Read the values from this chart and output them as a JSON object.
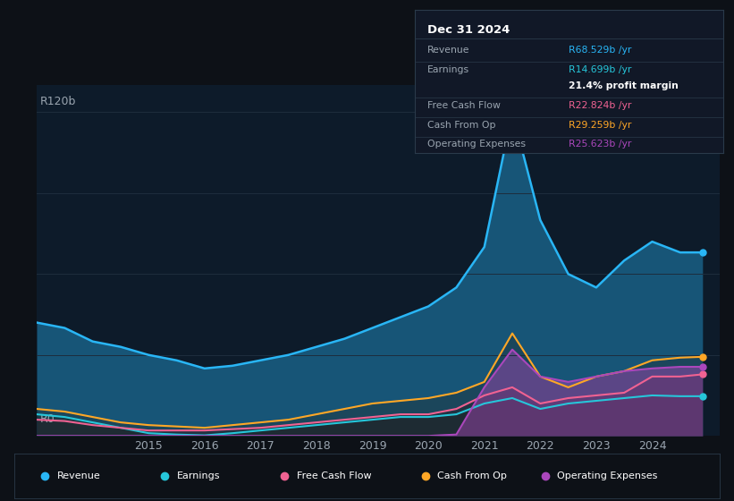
{
  "background_color": "#0d1117",
  "plot_bg_color": "#0d1b2a",
  "title_box_bg": "#111827",
  "title_box_border": "#2a3a4a",
  "years": [
    2013.0,
    2013.5,
    2014.0,
    2014.5,
    2015.0,
    2015.5,
    2016.0,
    2016.5,
    2017.0,
    2017.5,
    2018.0,
    2018.5,
    2019.0,
    2019.5,
    2020.0,
    2020.5,
    2021.0,
    2021.5,
    2022.0,
    2022.5,
    2023.0,
    2023.5,
    2024.0,
    2024.5,
    2024.9
  ],
  "revenue": [
    42,
    40,
    35,
    33,
    30,
    28,
    25,
    26,
    28,
    30,
    33,
    36,
    40,
    44,
    48,
    55,
    70,
    120,
    80,
    60,
    55,
    65,
    72,
    68,
    68
  ],
  "earnings": [
    8,
    7,
    5,
    3,
    1,
    0.5,
    0.2,
    1,
    2,
    3,
    4,
    5,
    6,
    7,
    7,
    8,
    12,
    14,
    10,
    12,
    13,
    14,
    15,
    14.7,
    14.7
  ],
  "free_cash_flow": [
    6,
    5.5,
    4,
    3,
    2,
    2,
    2,
    2.5,
    3,
    4,
    5,
    6,
    7,
    8,
    8,
    10,
    15,
    18,
    12,
    14,
    15,
    16,
    22,
    22,
    22.8
  ],
  "cash_from_op": [
    10,
    9,
    7,
    5,
    4,
    3.5,
    3,
    4,
    5,
    6,
    8,
    10,
    12,
    13,
    14,
    16,
    20,
    38,
    22,
    18,
    22,
    24,
    28,
    29,
    29.3
  ],
  "operating_expenses": [
    0,
    0,
    0,
    0,
    0,
    0,
    0,
    0,
    0,
    0,
    0,
    0,
    0,
    0,
    0,
    0.5,
    18,
    32,
    22,
    20,
    22,
    24,
    25,
    25.6,
    25.6
  ],
  "revenue_color": "#29b6f6",
  "earnings_color": "#26c6da",
  "free_cash_flow_color": "#f06292",
  "cash_from_op_color": "#ffa726",
  "operating_expenses_color": "#ab47bc",
  "grid_color": "#1e2d3d",
  "text_color": "#9aa5b0",
  "ylabel_top": "R120b",
  "ylabel_bottom": "R0",
  "xlim": [
    2013.0,
    2025.2
  ],
  "ylim": [
    0,
    130
  ],
  "xticks": [
    2015,
    2016,
    2017,
    2018,
    2019,
    2020,
    2021,
    2022,
    2023,
    2024
  ],
  "grid_levels": [
    30,
    60,
    90,
    120
  ],
  "info_box": {
    "title": "Dec 31 2024",
    "rows": [
      {
        "label": "Revenue",
        "value": "R68.529b /yr",
        "value_color": "#29b6f6",
        "bold": false
      },
      {
        "label": "Earnings",
        "value": "R14.699b /yr",
        "value_color": "#26c6da",
        "bold": false
      },
      {
        "label": "",
        "value": "21.4% profit margin",
        "value_color": "#ffffff",
        "bold": true
      },
      {
        "label": "Free Cash Flow",
        "value": "R22.824b /yr",
        "value_color": "#f06292",
        "bold": false
      },
      {
        "label": "Cash From Op",
        "value": "R29.259b /yr",
        "value_color": "#ffa726",
        "bold": false
      },
      {
        "label": "Operating Expenses",
        "value": "R25.623b /yr",
        "value_color": "#ab47bc",
        "bold": false
      }
    ]
  },
  "legend": [
    {
      "label": "Revenue",
      "color": "#29b6f6"
    },
    {
      "label": "Earnings",
      "color": "#26c6da"
    },
    {
      "label": "Free Cash Flow",
      "color": "#f06292"
    },
    {
      "label": "Cash From Op",
      "color": "#ffa726"
    },
    {
      "label": "Operating Expenses",
      "color": "#ab47bc"
    }
  ]
}
